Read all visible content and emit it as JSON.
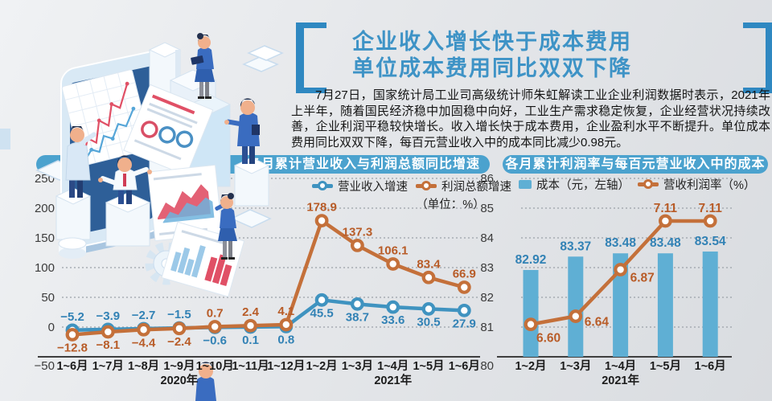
{
  "title": {
    "line1": "企业收入增长快于成本费用",
    "line2": "单位成本费用同比双双下降"
  },
  "intro": {
    "text": "7月27日，国家统计局工业司高级统计师朱虹解读工业企业利润数据时表示，2021年上半年，随着国民经济稳中加固稳中向好，工业生产需求稳定恢复，企业经营状况持续改善，企业利润平稳较快增长。收入增长快于成本费用，企业盈利水平不断提升。单位成本费用同比双双下降，每百元营业收入中的成本同比减少0.98元。"
  },
  "colors": {
    "accent_title_blue": "#3e93c6",
    "header_bar_blue": "#4ba2ce",
    "bracket_blue": "#2f88c1",
    "line_blue": "#3f93c0",
    "line_orange": "#c4703a",
    "bar_blue": "#5fafd4"
  },
  "chart_data": [
    {
      "type": "line",
      "title": "各月累计营业收入与利润总额同比增速",
      "unit_note": "（单位：%）",
      "categories": [
        "1~6月",
        "1~7月",
        "1~8月",
        "1~9月",
        "1~10月",
        "1~11月",
        "1~12月",
        "1~2月",
        "1~3月",
        "1~4月",
        "1~5月",
        "1~6月"
      ],
      "year_groups": [
        {
          "label": "2020年",
          "under_index": 3
        },
        {
          "label": "2021年",
          "under_index": 9
        }
      ],
      "ylim": [
        -50,
        250
      ],
      "yticks": [
        250,
        200,
        150,
        100,
        50,
        0,
        -50
      ],
      "grid": "dotted-horizontal",
      "legend_position": "top",
      "series": [
        {
          "name": "营业收入增速",
          "color": "#3f93c0",
          "label_color": "#3282b5",
          "values": [
            -5.2,
            -3.9,
            -2.7,
            -1.5,
            -0.6,
            0.1,
            0.8,
            45.5,
            38.7,
            33.6,
            30.5,
            27.9
          ],
          "labels": [
            "−5.2",
            "−3.9",
            "−2.7",
            "−1.5",
            "−0.6",
            "0.1",
            "0.8",
            "45.5",
            "38.7",
            "33.6",
            "30.5",
            "27.9"
          ]
        },
        {
          "name": "利润总额增速",
          "color": "#c4703a",
          "label_color": "#b85c28",
          "values": [
            -12.8,
            -8.1,
            -4.4,
            -2.4,
            0.7,
            2.4,
            4.1,
            178.9,
            137.3,
            106.1,
            83.4,
            66.9
          ],
          "labels": [
            "−12.8",
            "−8.1",
            "−4.4",
            "−2.4",
            "0.7",
            "2.4",
            "4.1",
            "178.9",
            "137.3",
            "106.1",
            "83.4",
            "66.9"
          ]
        }
      ]
    },
    {
      "type": "bar+line",
      "title": "各月累计利润率与每百元营业收入中的成本",
      "categories": [
        "1~2月",
        "1~3月",
        "1~4月",
        "1~5月",
        "1~6月"
      ],
      "year_groups": [
        {
          "label": "2021年",
          "under_index": 2
        }
      ],
      "ylim": [
        80,
        86
      ],
      "yticks": [
        86,
        85,
        84,
        83,
        82,
        81,
        80
      ],
      "y2lim": [
        6.44,
        7.32
      ],
      "grid": "dotted-horizontal",
      "legend_position": "top",
      "series": [
        {
          "name": "成本（元，左轴）",
          "chart": "bar",
          "axis": "left",
          "color": "#5fafd4",
          "label_color": "#3282b5",
          "values": [
            82.92,
            83.37,
            83.48,
            83.48,
            83.54
          ],
          "labels": [
            "82.92",
            "83.37",
            "83.48",
            "83.48",
            "83.54"
          ]
        },
        {
          "name": "营收利润率（%）",
          "chart": "line",
          "axis": "right",
          "color": "#c4703a",
          "label_color": "#b85c28",
          "values": [
            6.6,
            6.64,
            6.87,
            7.11,
            7.11
          ],
          "labels": [
            "6.60",
            "6.64",
            "6.87",
            "7.11",
            "7.11"
          ]
        }
      ]
    }
  ]
}
